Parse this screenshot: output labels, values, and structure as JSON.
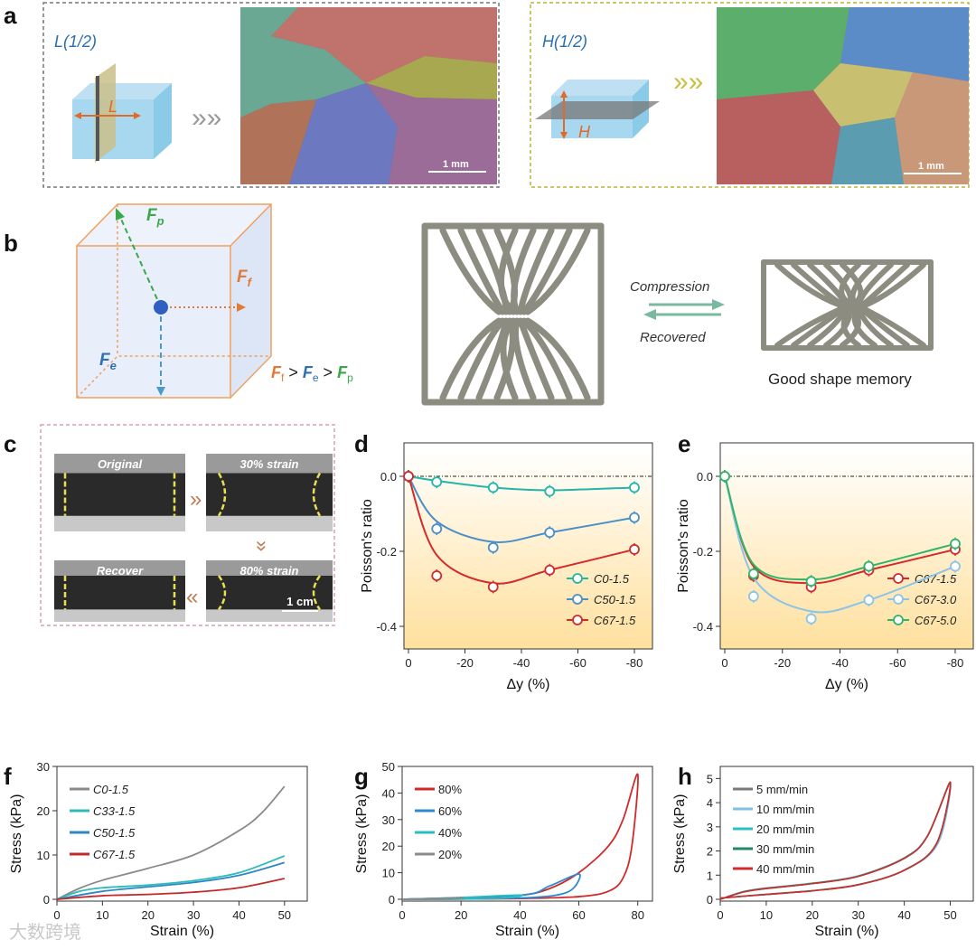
{
  "panel_letters": [
    "a",
    "b",
    "c",
    "d",
    "e",
    "f",
    "g",
    "h"
  ],
  "panel_a": {
    "left_title": "L(1/2)",
    "left_arrow": "L",
    "right_title": "H(1/2)",
    "right_arrow": "H",
    "scale_left": "1 mm",
    "scale_right": "1 mm",
    "colors": {
      "left_frame": "#777777",
      "right_frame": "#b8b43c"
    }
  },
  "panel_b": {
    "fp": {
      "main": "F",
      "sub": "p"
    },
    "ff": {
      "main": "F",
      "sub": "f"
    },
    "fe": {
      "main": "F",
      "sub": "e"
    },
    "inequality": [
      {
        "main": "F",
        "sub": "f"
      },
      {
        "op": " > "
      },
      {
        "main": "F",
        "sub": "e"
      },
      {
        "op": " > "
      },
      {
        "main": "F",
        "sub": "p"
      }
    ],
    "compression": "Compression",
    "recovered": "Recovered",
    "caption": "Good shape memory",
    "colors": {
      "fp": "#3aa84a",
      "ff": "#e07a3a",
      "fe": "#2f6fb5",
      "cube": "#f0a060"
    }
  },
  "panel_c": {
    "photos": [
      "Original",
      "30% strain",
      "80% strain",
      "Recover"
    ],
    "scale": "1 cm"
  },
  "chart_data": [
    {
      "id": "d",
      "type": "line",
      "xlabel": "Δy (%)",
      "ylabel": "Poisson's ratio",
      "xlim": [
        0,
        -90
      ],
      "ylim": [
        0.1,
        -0.5
      ],
      "xticks": [
        0,
        -20,
        -40,
        -60,
        -80
      ],
      "yticks": [
        0.0,
        -0.2,
        -0.4
      ],
      "ytick_labels": [
        "0.0",
        "-0.2",
        "-0.4"
      ],
      "legend": "bottom-right",
      "x": [
        0,
        -10,
        -30,
        -50,
        -80
      ],
      "series": [
        {
          "name": "C0-1.5",
          "color": "#22b5a8",
          "values": [
            0,
            -0.015,
            -0.03,
            -0.04,
            -0.03
          ],
          "fit": [
            0,
            -0.012,
            -0.03,
            -0.037,
            -0.03
          ]
        },
        {
          "name": "C50-1.5",
          "color": "#4a90c8",
          "values": [
            0,
            -0.14,
            -0.19,
            -0.15,
            -0.11
          ],
          "fit": [
            0,
            -0.12,
            -0.175,
            -0.15,
            -0.11
          ]
        },
        {
          "name": "C67-1.5",
          "color": "#d42a2a",
          "values": [
            0,
            -0.265,
            -0.295,
            -0.25,
            -0.195
          ],
          "fit": [
            0,
            -0.21,
            -0.285,
            -0.25,
            -0.195
          ]
        }
      ]
    },
    {
      "id": "e",
      "type": "line",
      "xlabel": "Δy (%)",
      "ylabel": "Poisson's ratio",
      "xlim": [
        0,
        -90
      ],
      "ylim": [
        0.1,
        -0.5
      ],
      "xticks": [
        0,
        -20,
        -40,
        -60,
        -80
      ],
      "yticks": [
        0.0,
        -0.2,
        -0.4
      ],
      "ytick_labels": [
        "0.0",
        "-0.2",
        "-0.4"
      ],
      "legend": "bottom-right",
      "x": [
        0,
        -10,
        -30,
        -50,
        -80
      ],
      "series": [
        {
          "name": "C67-1.5",
          "color": "#d42a2a",
          "values": [
            0,
            -0.265,
            -0.295,
            -0.25,
            -0.195
          ],
          "fit": [
            0,
            -0.24,
            -0.285,
            -0.25,
            -0.195
          ]
        },
        {
          "name": "C67-3.0",
          "color": "#8cc4e8",
          "values": [
            0,
            -0.32,
            -0.38,
            -0.33,
            -0.24
          ],
          "fit": [
            0,
            -0.27,
            -0.36,
            -0.33,
            -0.24
          ]
        },
        {
          "name": "C67-5.0",
          "color": "#2fb56a",
          "values": [
            0,
            -0.26,
            -0.28,
            -0.24,
            -0.18
          ],
          "fit": [
            0,
            -0.235,
            -0.275,
            -0.24,
            -0.18
          ]
        }
      ]
    },
    {
      "id": "f",
      "type": "line",
      "xlabel": "Strain (%)",
      "ylabel": "Stress (kPa)",
      "xlim": [
        0,
        55
      ],
      "ylim": [
        0,
        30
      ],
      "xticks": [
        0,
        10,
        20,
        30,
        40,
        50
      ],
      "yticks": [
        0,
        10,
        20,
        30
      ],
      "legend": "top-left",
      "series": [
        {
          "name": "C0-1.5",
          "color": "#8a8a8a",
          "points": [
            [
              0,
              0
            ],
            [
              5,
              2.5
            ],
            [
              10,
              4.3
            ],
            [
              20,
              7
            ],
            [
              30,
              10
            ],
            [
              40,
              15.5
            ],
            [
              45,
              19.5
            ],
            [
              50,
              25.5
            ]
          ]
        },
        {
          "name": "C33-1.5",
          "color": "#2bbdb5",
          "points": [
            [
              0,
              0
            ],
            [
              5,
              1.8
            ],
            [
              10,
              2.6
            ],
            [
              20,
              3.2
            ],
            [
              30,
              4.2
            ],
            [
              40,
              6
            ],
            [
              50,
              9.8
            ]
          ]
        },
        {
          "name": "C50-1.5",
          "color": "#2e86c8",
          "points": [
            [
              0,
              0
            ],
            [
              10,
              1.8
            ],
            [
              20,
              2.8
            ],
            [
              30,
              3.8
            ],
            [
              40,
              5.4
            ],
            [
              50,
              8.3
            ]
          ]
        },
        {
          "name": "C67-1.5",
          "color": "#c42a2a",
          "points": [
            [
              0,
              0
            ],
            [
              10,
              0.8
            ],
            [
              20,
              1.1
            ],
            [
              30,
              1.6
            ],
            [
              40,
              2.6
            ],
            [
              50,
              4.7
            ]
          ]
        }
      ]
    },
    {
      "id": "g",
      "type": "line",
      "xlabel": "Strain (%)",
      "ylabel": "Stress (kPa)",
      "xlim": [
        0,
        85
      ],
      "ylim": [
        0,
        50
      ],
      "xticks": [
        0,
        20,
        40,
        60,
        80
      ],
      "yticks": [
        0,
        10,
        20,
        30,
        40,
        50
      ],
      "legend": "top-left",
      "series": [
        {
          "name": "80%",
          "color": "#d02a2a",
          "points": [
            [
              0,
              0
            ],
            [
              20,
              0.5
            ],
            [
              40,
              1.5
            ],
            [
              50,
              4
            ],
            [
              60,
              10
            ],
            [
              70,
              20
            ],
            [
              75,
              30
            ],
            [
              80,
              47
            ],
            [
              78,
              20
            ],
            [
              75,
              8
            ],
            [
              70,
              3
            ],
            [
              60,
              1
            ],
            [
              40,
              0.3
            ],
            [
              20,
              0.1
            ],
            [
              0,
              0
            ]
          ]
        },
        {
          "name": "60%",
          "color": "#2e8ad0",
          "points": [
            [
              0,
              0
            ],
            [
              40,
              1.5
            ],
            [
              50,
              5
            ],
            [
              60,
              9.5
            ],
            [
              58,
              4
            ],
            [
              52,
              1.5
            ],
            [
              40,
              0.5
            ],
            [
              20,
              0.1
            ],
            [
              0,
              0
            ]
          ]
        },
        {
          "name": "40%",
          "color": "#2bbdc0",
          "points": [
            [
              0,
              0
            ],
            [
              20,
              0.7
            ],
            [
              40,
              1.6
            ],
            [
              35,
              0.5
            ],
            [
              20,
              0.1
            ],
            [
              0,
              0
            ]
          ]
        },
        {
          "name": "20%",
          "color": "#8a8a8a",
          "points": [
            [
              0,
              0
            ],
            [
              20,
              0.6
            ],
            [
              15,
              0.2
            ],
            [
              0,
              0
            ]
          ]
        }
      ]
    },
    {
      "id": "h",
      "type": "line",
      "xlabel": "Strain (%)",
      "ylabel": "Stress (kPa)",
      "xlim": [
        0,
        55
      ],
      "ylim": [
        0,
        5.5
      ],
      "xticks": [
        0,
        10,
        20,
        30,
        40,
        50
      ],
      "yticks": [
        0,
        1,
        2,
        3,
        4,
        5
      ],
      "legend": "top-left",
      "series": [
        {
          "name": "5 mm/min",
          "color": "#7a7a7a",
          "points": [
            [
              0,
              0
            ],
            [
              5,
              0.3
            ],
            [
              10,
              0.45
            ],
            [
              20,
              0.65
            ],
            [
              30,
              0.95
            ],
            [
              40,
              1.7
            ],
            [
              45,
              2.6
            ],
            [
              50,
              4.85
            ],
            [
              47,
              2.3
            ],
            [
              40,
              1.2
            ],
            [
              30,
              0.6
            ],
            [
              20,
              0.35
            ],
            [
              10,
              0.2
            ],
            [
              0,
              0.05
            ]
          ]
        },
        {
          "name": "10 mm/min",
          "color": "#7ec0e6",
          "points": [
            [
              0,
              0
            ],
            [
              5,
              0.31
            ],
            [
              10,
              0.46
            ],
            [
              20,
              0.66
            ],
            [
              30,
              0.96
            ],
            [
              40,
              1.7
            ],
            [
              45,
              2.6
            ],
            [
              50,
              4.8
            ],
            [
              47.3,
              2.3
            ],
            [
              40,
              1.2
            ],
            [
              30,
              0.6
            ],
            [
              20,
              0.35
            ],
            [
              10,
              0.2
            ],
            [
              0,
              0.05
            ]
          ]
        },
        {
          "name": "20 mm/min",
          "color": "#2bc0c0",
          "points": [
            [
              0,
              0
            ],
            [
              5,
              0.32
            ],
            [
              10,
              0.47
            ],
            [
              20,
              0.67
            ],
            [
              30,
              0.97
            ],
            [
              40,
              1.72
            ],
            [
              45,
              2.62
            ],
            [
              50,
              4.85
            ],
            [
              47,
              2.3
            ],
            [
              40,
              1.2
            ],
            [
              30,
              0.6
            ],
            [
              20,
              0.35
            ],
            [
              10,
              0.2
            ],
            [
              0,
              0.05
            ]
          ]
        },
        {
          "name": "30 mm/min",
          "color": "#1e8a6a",
          "points": [
            [
              0,
              0
            ],
            [
              5,
              0.3
            ],
            [
              10,
              0.44
            ],
            [
              20,
              0.65
            ],
            [
              30,
              0.95
            ],
            [
              40,
              1.69
            ],
            [
              45,
              2.6
            ],
            [
              50,
              4.85
            ],
            [
              47,
              2.3
            ],
            [
              40,
              1.21
            ],
            [
              30,
              0.61
            ],
            [
              20,
              0.36
            ],
            [
              10,
              0.21
            ],
            [
              0,
              0.05
            ]
          ]
        },
        {
          "name": "40 mm/min",
          "color": "#d42a2a",
          "points": [
            [
              0,
              0
            ],
            [
              5,
              0.3
            ],
            [
              10,
              0.45
            ],
            [
              20,
              0.65
            ],
            [
              30,
              0.95
            ],
            [
              40,
              1.7
            ],
            [
              45,
              2.6
            ],
            [
              50,
              4.85
            ],
            [
              47,
              2.3
            ],
            [
              40,
              1.2
            ],
            [
              30,
              0.6
            ],
            [
              20,
              0.35
            ],
            [
              10,
              0.2
            ],
            [
              0,
              0.05
            ]
          ]
        }
      ]
    }
  ],
  "watermark": "大数跨境"
}
